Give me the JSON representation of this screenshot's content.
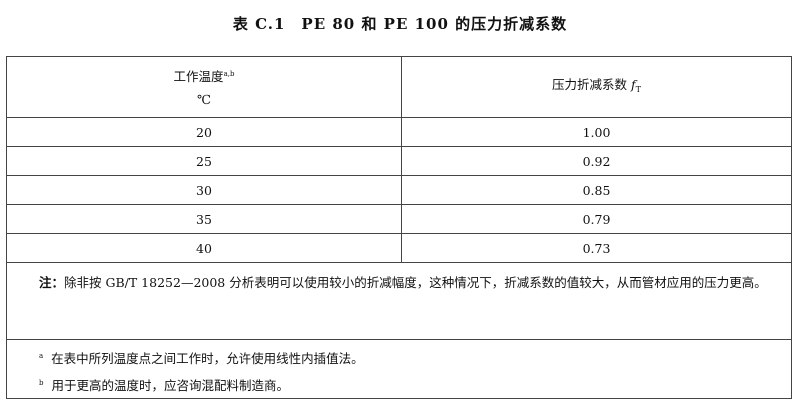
{
  "title": "表 C.1　PE 80 和 PE 100 的压力折减系数",
  "header": {
    "col1": "工作温度",
    "col1_sup": "a,b",
    "col1_unit": "℃",
    "col2": "压力折减系数 ",
    "col2_symbol": "f",
    "col2_sub": "T"
  },
  "rows": [
    {
      "temp": "20",
      "factor": "1.00"
    },
    {
      "temp": "25",
      "factor": "0.92"
    },
    {
      "temp": "30",
      "factor": "0.85"
    },
    {
      "temp": "35",
      "factor": "0.79"
    },
    {
      "temp": "40",
      "factor": "0.73"
    }
  ],
  "note": {
    "label": "注：",
    "text": "除非按 GB/T 18252—2008 分析表明可以使用较小的折减幅度，这种情况下，折减系数的值较大，从而管材应用的压力更高。"
  },
  "footnotes": [
    {
      "mark": "a",
      "text": "在表中所列温度点之间工作时，允许使用线性内插值法。"
    },
    {
      "mark": "b",
      "text": "用于更高的温度时，应咨询混配料制造商。"
    }
  ]
}
